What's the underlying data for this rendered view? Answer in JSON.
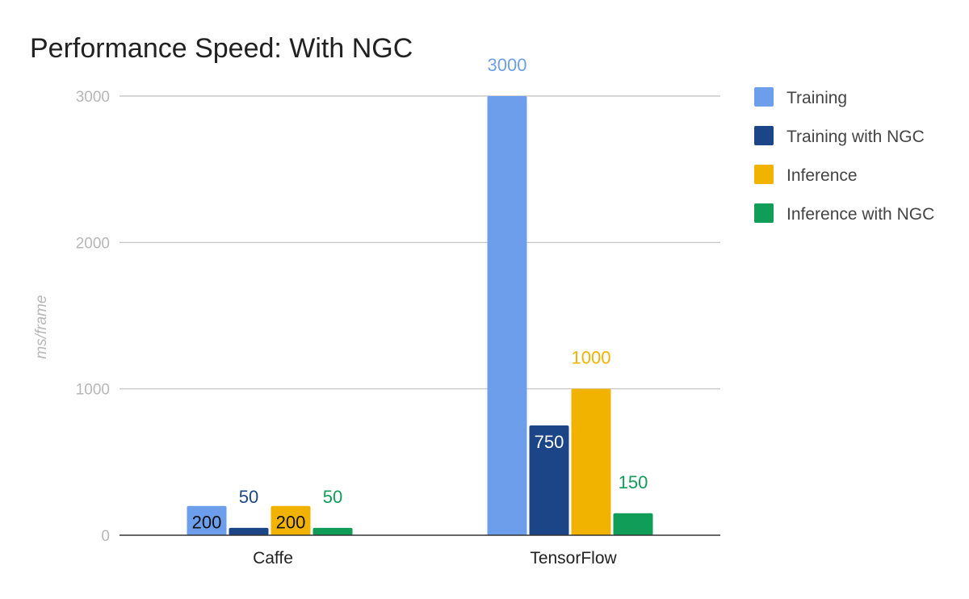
{
  "chart_data": {
    "type": "bar",
    "title": "Performance Speed: With NGC",
    "xlabel": "",
    "ylabel": "ms/frame",
    "categories": [
      "Caffe",
      "TensorFlow"
    ],
    "ylim": [
      0,
      3000
    ],
    "yticks": [
      "0",
      "1000",
      "2000",
      "3000"
    ],
    "grid": true,
    "legend_position": "right",
    "series": [
      {
        "name": "Training",
        "values": [
          200,
          3000
        ],
        "labels": [
          "200",
          "3000"
        ],
        "color": "#6d9eeb"
      },
      {
        "name": "Training with NGC",
        "values": [
          50,
          750
        ],
        "labels": [
          "50",
          "750"
        ],
        "color": "#1c4587"
      },
      {
        "name": "Inference",
        "values": [
          200,
          1000
        ],
        "labels": [
          "200",
          "1000"
        ],
        "color": "#f1b300"
      },
      {
        "name": "Inference with NGC",
        "values": [
          50,
          150
        ],
        "labels": [
          "50",
          "150"
        ],
        "color": "#0f9d58"
      }
    ]
  }
}
